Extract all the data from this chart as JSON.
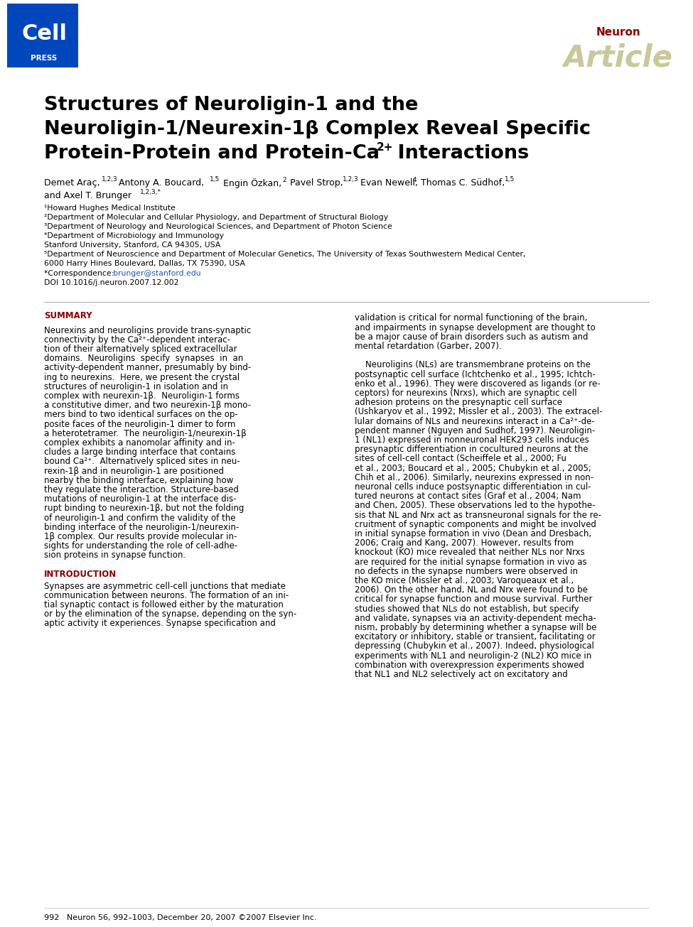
{
  "bg_color": "#ffffff",
  "cell_press_blue": "#0047BB",
  "neuron_red": "#8B0000",
  "article_color": "#C8C89A",
  "link_color": "#2255AA",
  "title_line1": "Structures of Neuroligin-1 and the",
  "title_line2": "Neuroligin-1/Neurexin-1β Complex Reveal Specific",
  "title_line3": "Protein-Protein and Protein-Ca",
  "title_line3_super": "2+",
  "title_line3_end": " Interactions",
  "affil1": "¹Howard Hughes Medical Institute",
  "affil2": "²Department of Molecular and Cellular Physiology, and Department of Structural Biology",
  "affil3": "³Department of Neurology and Neurological Sciences, and Department of Photon Science",
  "affil4": "⁴Department of Microbiology and Immunology",
  "affil5": "Stanford University, Stanford, CA 94305, USA",
  "affil6": "⁵Department of Neuroscience and Department of Molecular Genetics, The University of Texas Southwestern Medical Center,",
  "affil7": "6000 Harry Hines Boulevard, Dallas, TX 75390, USA",
  "corresp_pre": "*Correspondence: ",
  "corresp_link": "brunger@stanford.edu",
  "doi": "DOI 10.1016/j.neuron.2007.12.002",
  "summary_header": "SUMMARY",
  "intro_header": "INTRODUCTION",
  "footer_text": "992   Neuron 56, 992–1003, December 20, 2007 ©2007 Elsevier Inc.",
  "summary_lines": [
    "Neurexins and neuroligins provide trans-synaptic",
    "connectivity by the Ca²⁺-dependent interac-",
    "tion of their alternatively spliced extracellular",
    "domains.  Neuroligins  specify  synapses  in  an",
    "activity-dependent manner, presumably by bind-",
    "ing to neurexins.  Here, we present the crystal",
    "structures of neuroligin-1 in isolation and in",
    "complex with neurexin-1β.  Neuroligin-1 forms",
    "a constitutive dimer, and two neurexin-1β mono-",
    "mers bind to two identical surfaces on the op-",
    "posite faces of the neuroligin-1 dimer to form",
    "a heterotetramer.  The neuroligin-1/neurexin-1β",
    "complex exhibits a nanomolar affinity and in-",
    "cludes a large binding interface that contains",
    "bound Ca²⁺.  Alternatively spliced sites in neu-",
    "rexin-1β and in neuroligin-1 are positioned",
    "nearby the binding interface, explaining how",
    "they regulate the interaction. Structure-based",
    "mutations of neuroligin-1 at the interface dis-",
    "rupt binding to neurexin-1β, but not the folding",
    "of neuroligin-1 and confirm the validity of the",
    "binding interface of the neuroligin-1/neurexin-",
    "1β complex. Our results provide molecular in-",
    "sights for understanding the role of cell-adhe-",
    "sion proteins in synapse function."
  ],
  "intro_lines": [
    "Synapses are asymmetric cell-cell junctions that mediate",
    "communication between neurons. The formation of an ini-",
    "tial synaptic contact is followed either by the maturation",
    "or by the elimination of the synapse, depending on the syn-",
    "aptic activity it experiences. Synapse specification and"
  ],
  "right_col_lines": [
    "validation is critical for normal functioning of the brain,",
    "and impairments in synapse development are thought to",
    "be a major cause of brain disorders such as autism and",
    "mental retardation (Garber, 2007).",
    "",
    "    Neuroligins (NLs) are transmembrane proteins on the",
    "postsynaptic cell surface (Ichtchenko et al., 1995; Ichtch-",
    "enko et al., 1996). They were discovered as ligands (or re-",
    "ceptors) for neurexins (Nrxs), which are synaptic cell",
    "adhesion proteins on the presynaptic cell surface",
    "(Ushkaryov et al., 1992; Missler et al., 2003). The extracel-",
    "lular domains of NLs and neurexins interact in a Ca²⁺-de-",
    "pendent manner (Nguyen and Sudhof, 1997). Neuroligin-",
    "1 (NL1) expressed in nonneuronal HEK293 cells induces",
    "presynaptic differentiation in cocultured neurons at the",
    "sites of cell-cell contact (Scheiffele et al., 2000; Fu",
    "et al., 2003; Boucard et al., 2005; Chubykin et al., 2005;",
    "Chih et al., 2006). Similarly, neurexins expressed in non-",
    "neuronal cells induce postsynaptic differentiation in cul-",
    "tured neurons at contact sites (Graf et al., 2004; Nam",
    "and Chen, 2005). These observations led to the hypothe-",
    "sis that NL and Nrx act as transneuronal signals for the re-",
    "cruitment of synaptic components and might be involved",
    "in initial synapse formation in vivo (Dean and Dresbach,",
    "2006; Craig and Kang, 2007). However, results from",
    "knockout (KO) mice revealed that neither NLs nor Nrxs",
    "are required for the initial synapse formation in vivo as",
    "no defects in the synapse numbers were observed in",
    "the KO mice (Missler et al., 2003; Varoqueaux et al.,",
    "2006). On the other hand, NL and Nrx were found to be",
    "critical for synapse function and mouse survival. Further",
    "studies showed that NLs do not establish, but specify",
    "and validate, synapses via an activity-dependent mecha-",
    "nism, probably by determining whether a synapse will be",
    "excitatory or inhibitory, stable or transient, facilitating or",
    "depressing (Chubykin et al., 2007). Indeed, physiological",
    "experiments with NL1 and neuroligin-2 (NL2) KO mice in",
    "combination with overexpression experiments showed",
    "that NL1 and NL2 selectively act on excitatory and"
  ]
}
